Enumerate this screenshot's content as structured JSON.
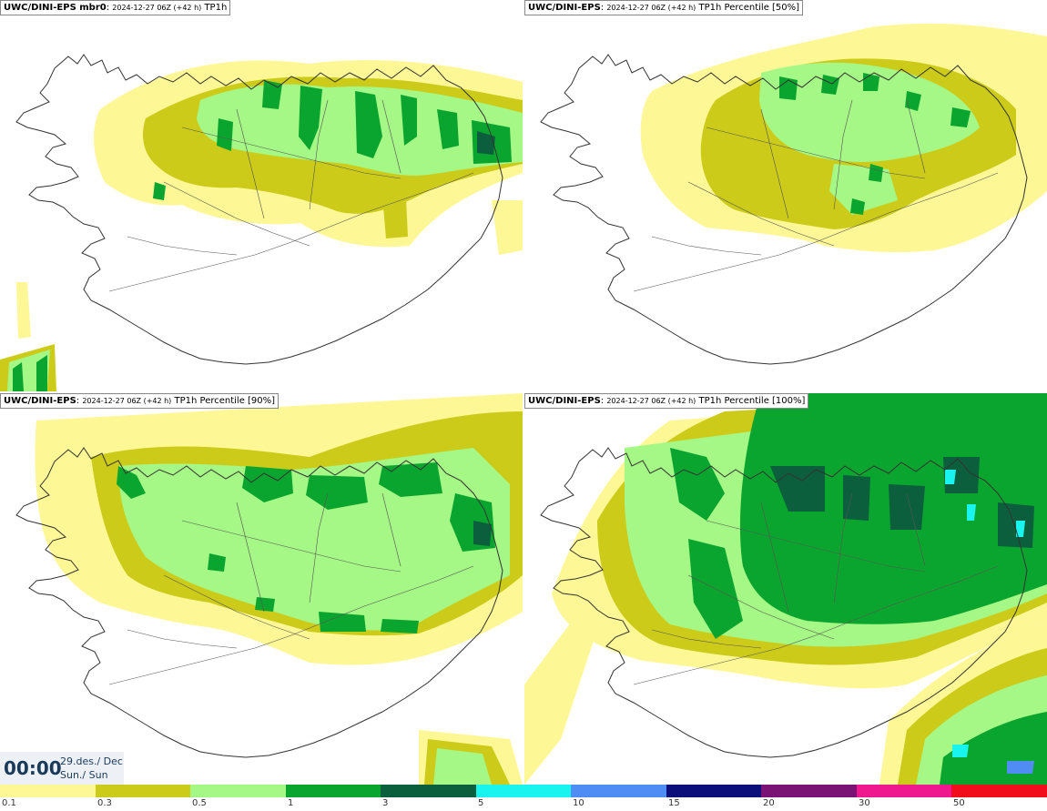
{
  "panels": [
    {
      "model": "UWC/DINI-EPS mbr0",
      "meta": "2024-12-27 06Z (+42 h)",
      "field": "TP1h"
    },
    {
      "model": "UWC/DINI-EPS",
      "meta": "2024-12-27 06Z (+42 h)",
      "field": "TP1h Percentile [50%]"
    },
    {
      "model": "UWC/DINI-EPS",
      "meta": "2024-12-27 06Z (+42 h)",
      "field": "TP1h Percentile [90%]"
    },
    {
      "model": "UWC/DINI-EPS",
      "meta": "2024-12-27 06Z (+42 h)",
      "field": "TP1h Percentile [100%]"
    }
  ],
  "time": {
    "clock": "00:00",
    "date": "29.des./ Dec",
    "day": "Sun./ Sun"
  },
  "legend": {
    "labels": [
      "0.1",
      "0.3",
      "0.5",
      "1",
      "3",
      "5",
      "10",
      "15",
      "20",
      "30",
      "50"
    ],
    "colors": [
      "#fdf795",
      "#cccb1a",
      "#a5f786",
      "#0aa52e",
      "#0b5f3d",
      "#19f5ee",
      "#4f8df4",
      "#0a0f79",
      "#7a1474",
      "#f0188e",
      "#f20d1c"
    ]
  },
  "colors": {
    "lvl1": "#fdf795",
    "lvl2": "#cccb1a",
    "lvl3": "#a5f786",
    "lvl4": "#0aa52e",
    "lvl5": "#0b5f3d",
    "lvl6": "#19f5ee",
    "lvl7": "#4f8df4",
    "coast": "#333333"
  }
}
